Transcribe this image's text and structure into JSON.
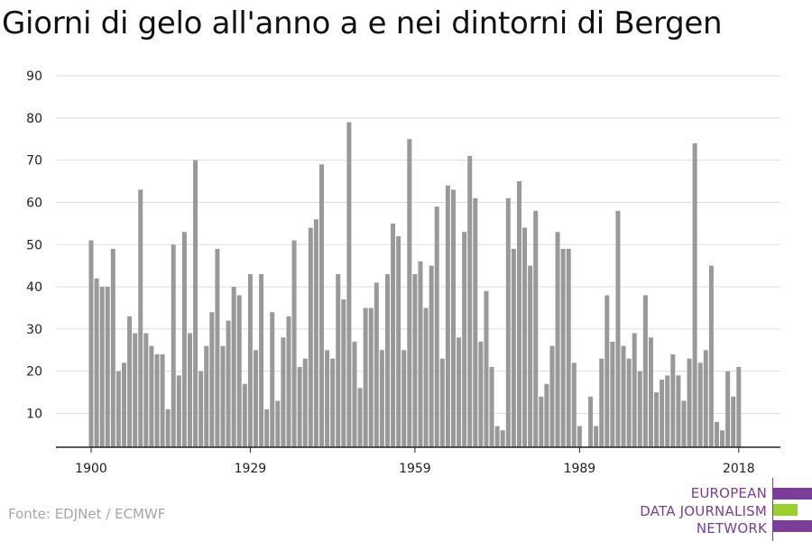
{
  "title": "Giorni di gelo all'anno a e nei dintorni di Bergen",
  "source": "Fonte: EDJNet / ECMWF",
  "logo": {
    "lines": [
      "EUROPEAN",
      "DATA JOURNALISM",
      "NETWORK"
    ],
    "colors": {
      "purple": "#7a3e98",
      "green": "#9ad02b"
    }
  },
  "colors": {
    "bar": "#999999",
    "grid": "#dddddd",
    "axis": "#222222"
  },
  "chart_data": {
    "type": "bar",
    "xlabel": "",
    "ylabel": "",
    "x_start": 1900,
    "x_end": 2018,
    "x_ticks": [
      "1900",
      "1929",
      "1959",
      "1989",
      "2018"
    ],
    "x_tick_years": [
      1900,
      1929,
      1959,
      1989,
      2018
    ],
    "y_ticks": [
      10,
      20,
      30,
      40,
      50,
      60,
      70,
      80,
      90
    ],
    "ylim": [
      2,
      90
    ],
    "grid": true,
    "legend": "none",
    "values": [
      51,
      42,
      40,
      40,
      49,
      20,
      22,
      33,
      29,
      63,
      29,
      26,
      24,
      24,
      11,
      50,
      19,
      53,
      29,
      70,
      20,
      26,
      34,
      49,
      26,
      32,
      40,
      38,
      17,
      43,
      25,
      43,
      11,
      34,
      13,
      28,
      33,
      51,
      21,
      23,
      54,
      56,
      69,
      25,
      23,
      43,
      37,
      79,
      27,
      16,
      35,
      35,
      41,
      25,
      43,
      55,
      52,
      25,
      75,
      43,
      46,
      35,
      45,
      59,
      23,
      64,
      63,
      28,
      53,
      71,
      61,
      27,
      39,
      21,
      7,
      6,
      61,
      49,
      65,
      54,
      45,
      58,
      14,
      17,
      26,
      53,
      49,
      49,
      22,
      7,
      2,
      14,
      7,
      23,
      38,
      27,
      58,
      26,
      23,
      29,
      20,
      38,
      28,
      15,
      18,
      19,
      24,
      19,
      13,
      23,
      74,
      22,
      25,
      45,
      8,
      6,
      20,
      14,
      21
    ]
  }
}
